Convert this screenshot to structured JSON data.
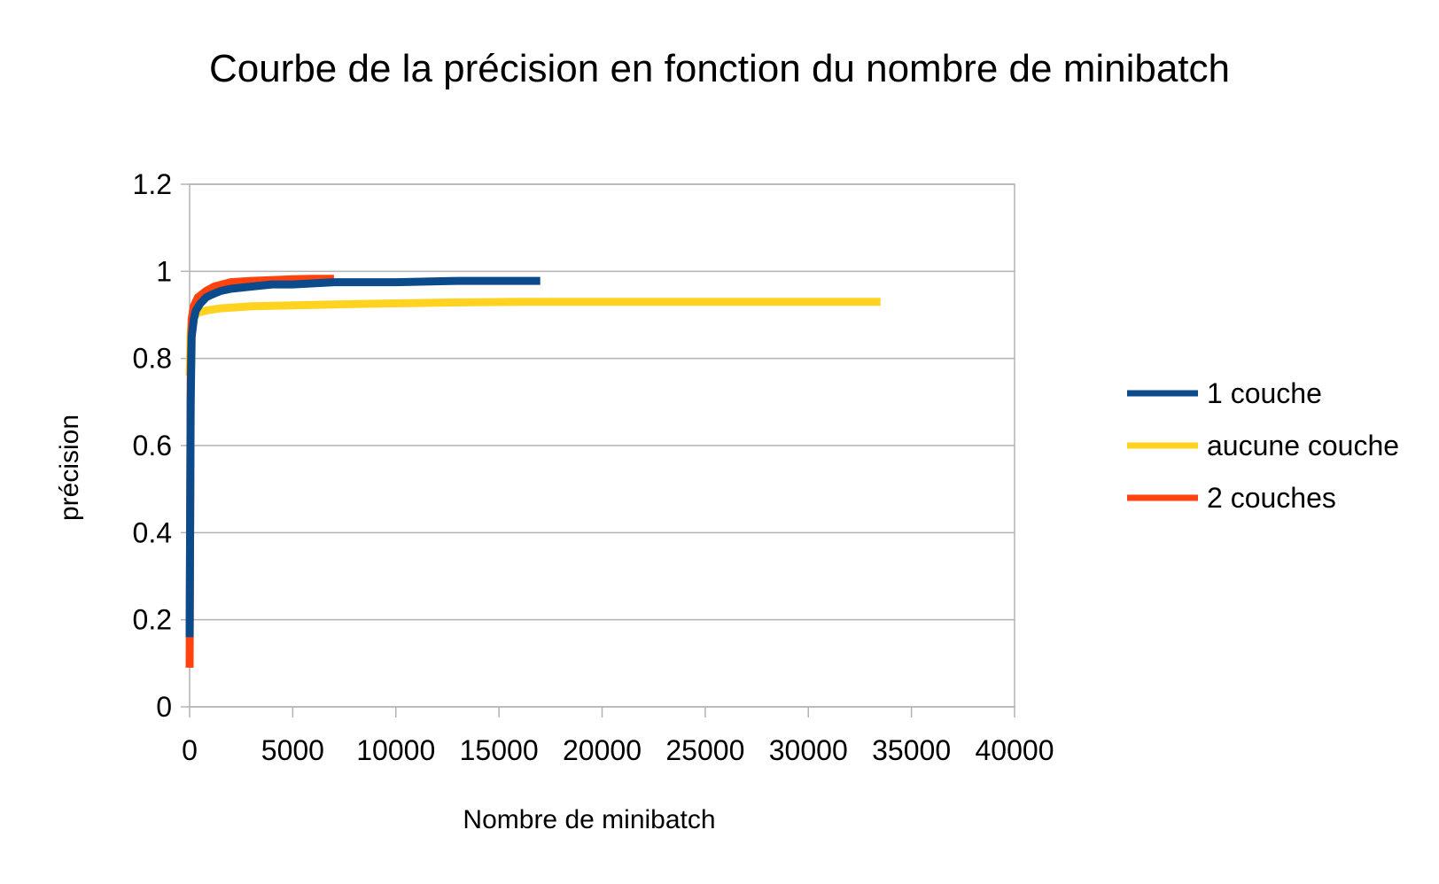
{
  "chart_data": {
    "type": "line",
    "title": "Courbe de la précision en fonction du nombre de minibatch",
    "xlabel": "Nombre de minibatch",
    "ylabel": "précision",
    "xlim": [
      0,
      40000
    ],
    "ylim": [
      0,
      1.2
    ],
    "x_ticks": [
      "0",
      "5000",
      "10000",
      "15000",
      "20000",
      "25000",
      "30000",
      "35000",
      "40000"
    ],
    "y_ticks": [
      "0",
      "0.2",
      "0.4",
      "0.6",
      "0.8",
      "1",
      "1.2"
    ],
    "grid": true,
    "legend_position": "right",
    "series": [
      {
        "name": "1 couche",
        "color": "#0b4a8b",
        "x": [
          0,
          50,
          100,
          200,
          300,
          500,
          800,
          1000,
          1500,
          2000,
          3000,
          4000,
          5000,
          7000,
          10000,
          13000,
          17000
        ],
        "y": [
          0.16,
          0.7,
          0.85,
          0.89,
          0.91,
          0.925,
          0.94,
          0.945,
          0.955,
          0.96,
          0.965,
          0.97,
          0.97,
          0.975,
          0.975,
          0.978,
          0.978
        ]
      },
      {
        "name": "aucune couche",
        "color": "#ffd320",
        "x": [
          0,
          50,
          100,
          200,
          400,
          800,
          1500,
          3000,
          5000,
          8000,
          12000,
          16000,
          20000,
          25000,
          30000,
          33500
        ],
        "y": [
          0.76,
          0.86,
          0.88,
          0.895,
          0.905,
          0.91,
          0.915,
          0.92,
          0.922,
          0.925,
          0.928,
          0.93,
          0.93,
          0.93,
          0.93,
          0.93
        ]
      },
      {
        "name": "2 couches",
        "color": "#ff420e",
        "x": [
          0,
          50,
          100,
          200,
          400,
          800,
          1200,
          2000,
          3000,
          4000,
          5000,
          6000,
          7000
        ],
        "y": [
          0.09,
          0.75,
          0.89,
          0.92,
          0.94,
          0.955,
          0.965,
          0.975,
          0.978,
          0.98,
          0.982,
          0.983,
          0.983
        ]
      }
    ]
  }
}
